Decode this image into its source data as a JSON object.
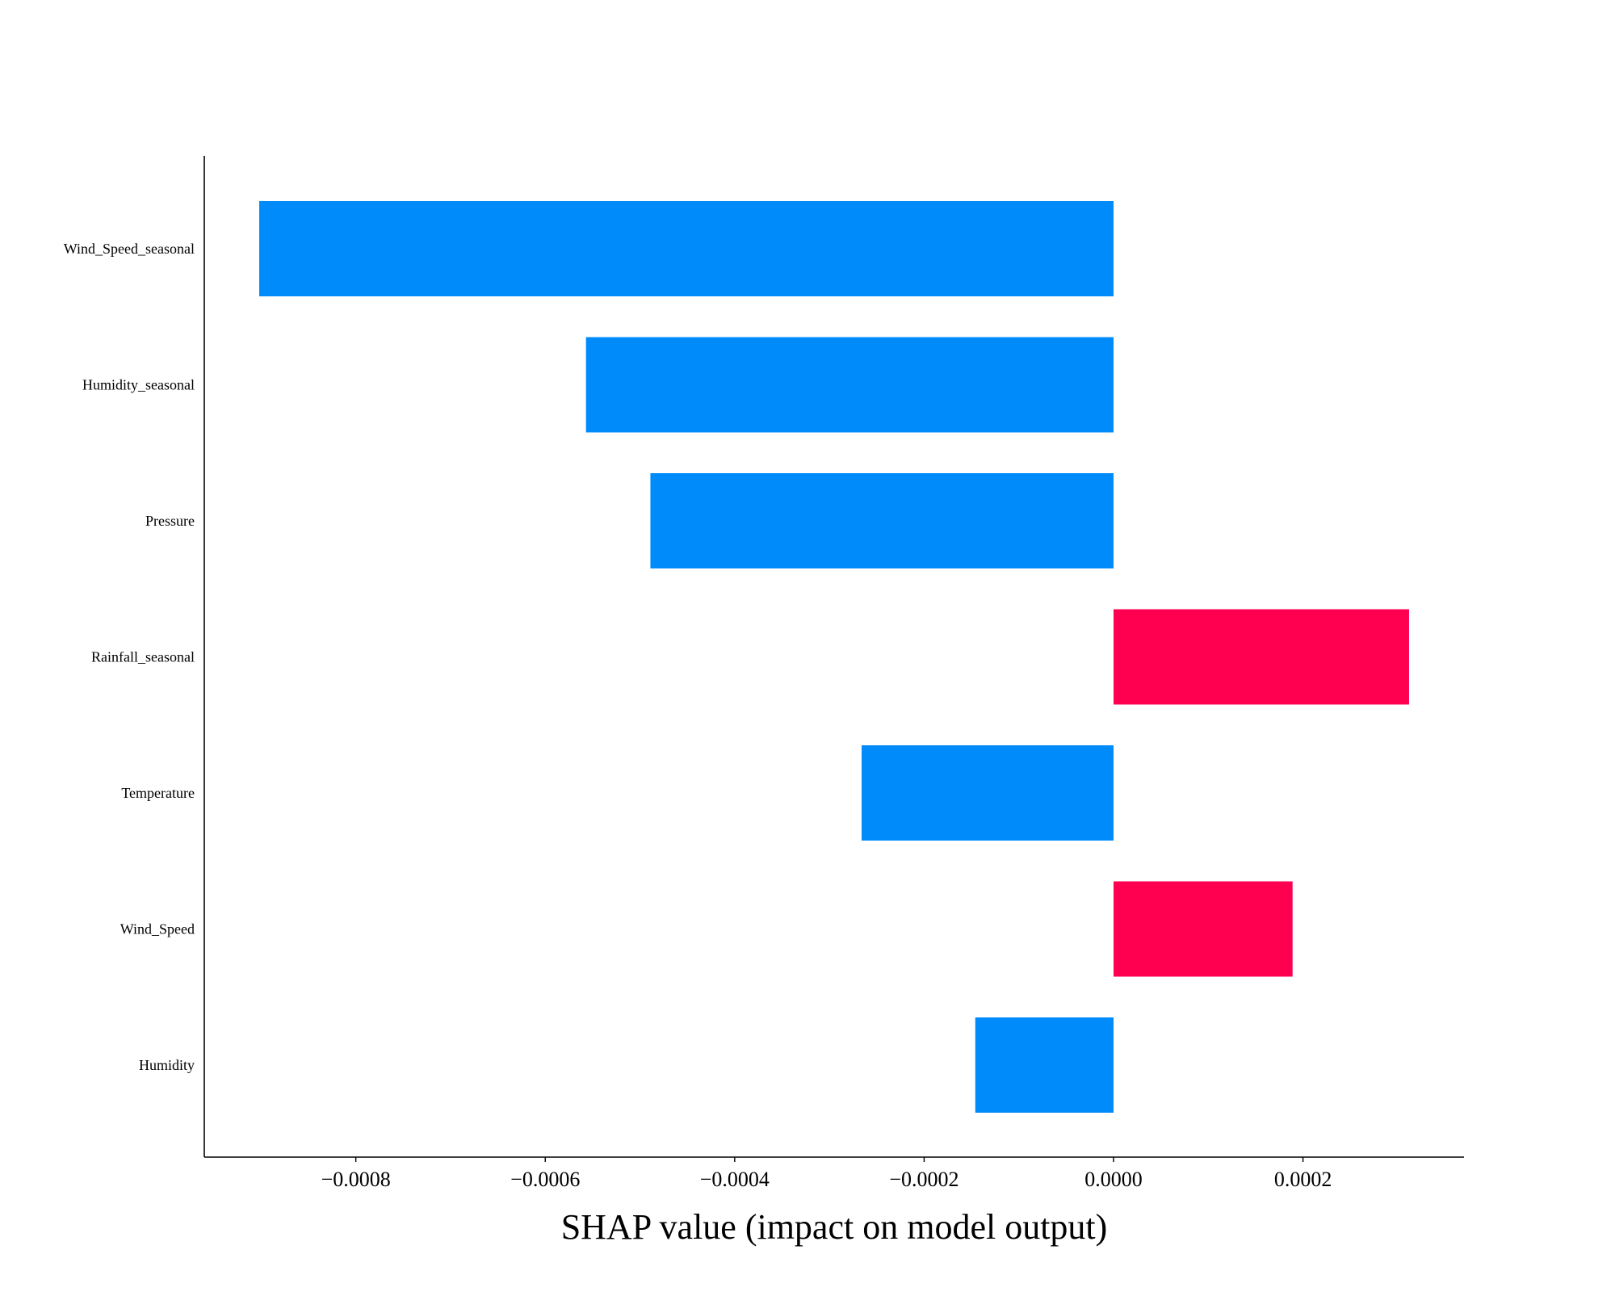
{
  "chart_data": {
    "type": "bar",
    "orientation": "horizontal",
    "title": "",
    "xlabel": "SHAP value (impact on model output)",
    "ylabel": "",
    "categories": [
      "Wind_Speed_seasonal",
      "Humidity_seasonal",
      "Pressure",
      "Rainfall_seasonal",
      "Temperature",
      "Wind_Speed",
      "Humidity"
    ],
    "values": [
      -0.000902,
      -0.000557,
      -0.000489,
      0.000312,
      -0.000266,
      0.000189,
      -0.000146
    ],
    "xlim": [
      -0.00096,
      0.00037
    ],
    "xticks": [
      -0.0008,
      -0.0006,
      -0.0004,
      -0.0002,
      0.0,
      0.0002
    ],
    "xtick_labels": [
      "−0.0008",
      "−0.0006",
      "−0.0004",
      "−0.0002",
      "0.0000",
      "0.0002"
    ],
    "grid": false,
    "legend": "none",
    "colors": {
      "negative": "#008bfb",
      "positive": "#ff0051",
      "axis": "#000000"
    }
  }
}
